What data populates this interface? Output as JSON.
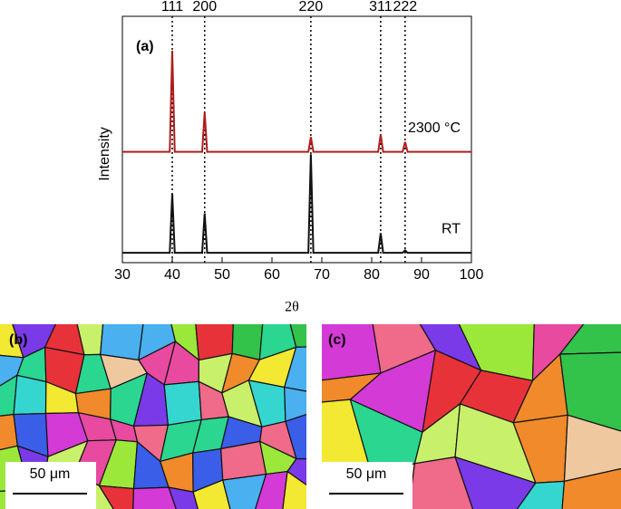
{
  "chart_data": {
    "type": "line",
    "panel_label": "(a)",
    "x_label": "2θ",
    "y_label": "Intensity",
    "x": [
      30,
      39.5,
      40,
      40.5,
      46,
      46.5,
      47,
      67.3,
      67.8,
      68.3,
      81.3,
      81.8,
      82.3,
      86.2,
      86.7,
      87.2,
      100
    ],
    "series": [
      {
        "name": "2300 °C",
        "color": "#b01c1c",
        "values": [
          45,
          45,
          86,
          45,
          45,
          61,
          45,
          45,
          51,
          45,
          45,
          52,
          45,
          45,
          49,
          45,
          45
        ]
      },
      {
        "name": "RT",
        "color": "#111111",
        "values": [
          4,
          4,
          28,
          4,
          4,
          20,
          4,
          4,
          44,
          4,
          4,
          12,
          4,
          4,
          5,
          4,
          4
        ]
      }
    ],
    "reference_lines": [
      {
        "x": 40,
        "label": "111"
      },
      {
        "x": 46.5,
        "label": "200"
      },
      {
        "x": 67.8,
        "label": "220"
      },
      {
        "x": 81.8,
        "label": "311"
      },
      {
        "x": 86.7,
        "label": "222"
      }
    ],
    "xlim": [
      30,
      100
    ],
    "xticks": [
      30,
      40,
      50,
      60,
      70,
      80,
      90,
      100
    ],
    "ylim": [
      0,
      100
    ]
  },
  "maps": [
    {
      "label": "(b)",
      "scale_bar": "50 μm"
    },
    {
      "label": "(c)",
      "scale_bar": "50 μm"
    }
  ]
}
